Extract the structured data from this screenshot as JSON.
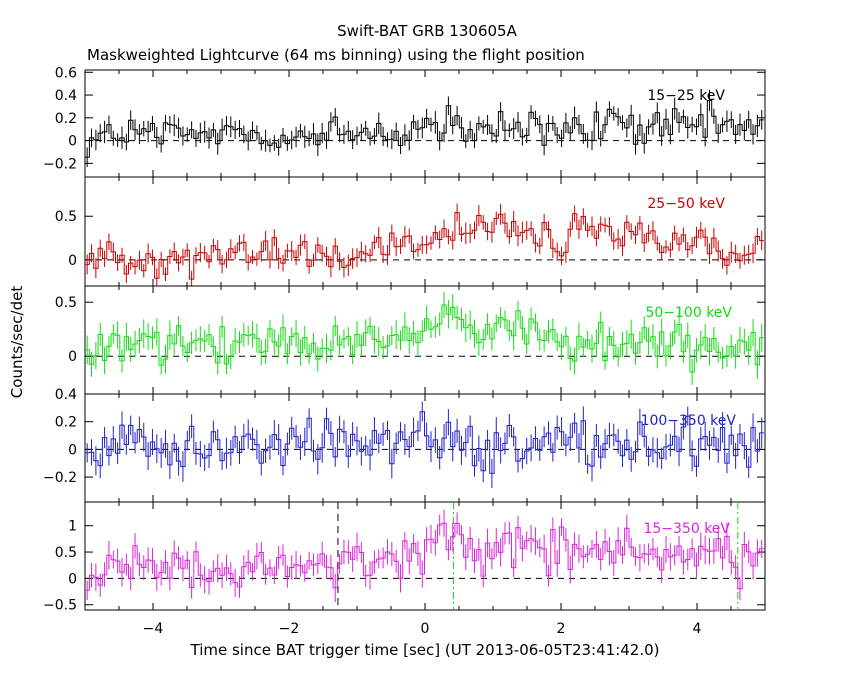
{
  "chart_data": {
    "type": "line",
    "title": "Swift-BAT GRB 130605A",
    "subtitle": "Maskweighted Lightcurve (64 ms binning) using the flight position",
    "xlabel": "Time since BAT trigger time [sec] (UT 2013-06-05T23:41:42.0)",
    "ylabel": "Counts/sec/det",
    "xlim": [
      -5,
      5
    ],
    "xticks": [
      -4,
      -2,
      0,
      2,
      4
    ],
    "xtick_labels": [
      "−4",
      "−2",
      "0",
      "2",
      "4"
    ],
    "bin_width": 0.064,
    "vlines_black": [
      -1.28
    ],
    "vlines_green": [
      0.42,
      4.6
    ],
    "panels": [
      {
        "name": "15−25 keV",
        "color": "#000000",
        "ylim": [
          -0.32,
          0.62
        ],
        "yticks": [
          -0.2,
          0,
          0.2,
          0.4,
          0.6
        ],
        "ytick_labels": [
          "−0.2",
          "0",
          "0.2",
          "0.4",
          "0.6"
        ],
        "points": [
          [
            -4.8,
            0.02
          ],
          [
            -4.4,
            0.06
          ],
          [
            -4.0,
            0.05
          ],
          [
            -3.6,
            0.03
          ],
          [
            -3.2,
            0.06
          ],
          [
            -2.8,
            0.08
          ],
          [
            -2.4,
            0.05
          ],
          [
            -2.0,
            0.04
          ],
          [
            -1.6,
            0.03
          ],
          [
            -1.2,
            0.05
          ],
          [
            -0.8,
            0.07
          ],
          [
            -0.4,
            0.06
          ],
          [
            0.0,
            0.14
          ],
          [
            0.4,
            0.08
          ],
          [
            0.8,
            0.06
          ],
          [
            1.2,
            0.12
          ],
          [
            1.6,
            0.1
          ],
          [
            2.0,
            0.06
          ],
          [
            2.4,
            0.08
          ],
          [
            2.8,
            0.16
          ],
          [
            3.2,
            0.12
          ],
          [
            3.6,
            0.1
          ],
          [
            4.0,
            0.12
          ],
          [
            4.4,
            0.14
          ],
          [
            4.8,
            0.1
          ]
        ],
        "noise": 0.09,
        "err": 0.08
      },
      {
        "name": "25−50 keV",
        "color": "#cc0000",
        "ylim": [
          -0.3,
          0.95
        ],
        "yticks": [
          0,
          0.5
        ],
        "ytick_labels": [
          "0",
          "0.5"
        ],
        "points": [
          [
            -4.8,
            0.02
          ],
          [
            -4.4,
            0.03
          ],
          [
            -4.0,
            0.03
          ],
          [
            -3.6,
            0.02
          ],
          [
            -3.2,
            0.03
          ],
          [
            -2.8,
            0.05
          ],
          [
            -2.4,
            0.07
          ],
          [
            -2.0,
            0.08
          ],
          [
            -1.6,
            0.06
          ],
          [
            -1.2,
            0.08
          ],
          [
            -0.8,
            0.13
          ],
          [
            -0.4,
            0.15
          ],
          [
            0.0,
            0.2
          ],
          [
            0.4,
            0.28
          ],
          [
            0.8,
            0.33
          ],
          [
            1.2,
            0.38
          ],
          [
            1.6,
            0.32
          ],
          [
            2.0,
            0.1
          ],
          [
            2.2,
            0.45
          ],
          [
            2.4,
            0.25
          ],
          [
            2.8,
            0.28
          ],
          [
            3.2,
            0.22
          ],
          [
            3.6,
            0.15
          ],
          [
            4.0,
            0.18
          ],
          [
            4.4,
            0.16
          ],
          [
            4.8,
            0.12
          ]
        ],
        "noise": 0.1,
        "err": 0.1
      },
      {
        "name": "50−100 keV",
        "color": "#11dd11",
        "ylim": [
          -0.35,
          0.65
        ],
        "yticks": [
          0,
          0.5
        ],
        "ytick_labels": [
          "0",
          "0.5"
        ],
        "points": [
          [
            -4.8,
            0.02
          ],
          [
            -4.4,
            0.08
          ],
          [
            -4.2,
            0.22
          ],
          [
            -4.0,
            0.08
          ],
          [
            -3.6,
            0.08
          ],
          [
            -3.2,
            0.06
          ],
          [
            -2.8,
            0.09
          ],
          [
            -2.4,
            0.1
          ],
          [
            -2.0,
            0.1
          ],
          [
            -1.6,
            0.08
          ],
          [
            -1.2,
            0.1
          ],
          [
            -0.8,
            0.18
          ],
          [
            -0.4,
            0.22
          ],
          [
            0.0,
            0.26
          ],
          [
            0.3,
            0.45
          ],
          [
            0.6,
            0.38
          ],
          [
            0.9,
            0.2
          ],
          [
            1.2,
            0.22
          ],
          [
            1.6,
            0.25
          ],
          [
            2.0,
            0.18
          ],
          [
            2.4,
            0.1
          ],
          [
            2.8,
            0.12
          ],
          [
            3.2,
            0.15
          ],
          [
            3.6,
            0.12
          ],
          [
            4.0,
            0.1
          ],
          [
            4.4,
            0.08
          ],
          [
            4.8,
            0.06
          ]
        ],
        "noise": 0.1,
        "err": 0.11
      },
      {
        "name": "100−350 keV",
        "color": "#2020cc",
        "ylim": [
          -0.38,
          0.4
        ],
        "yticks": [
          -0.2,
          0,
          0.2,
          0.4
        ],
        "ytick_labels": [
          "−0.2",
          "0",
          "0.2",
          "0.4"
        ],
        "points": [
          [
            -4.8,
            0.02
          ],
          [
            -4.4,
            0.05
          ],
          [
            -4.0,
            0.08
          ],
          [
            -3.6,
            0.04
          ],
          [
            -3.2,
            0.02
          ],
          [
            -2.8,
            0.03
          ],
          [
            -2.4,
            0.04
          ],
          [
            -2.0,
            0.02
          ],
          [
            -1.6,
            0.04
          ],
          [
            -1.2,
            0.05
          ],
          [
            -0.8,
            0.07
          ],
          [
            -0.4,
            0.08
          ],
          [
            0.0,
            0.12
          ],
          [
            0.4,
            0.1
          ],
          [
            0.8,
            0.06
          ],
          [
            1.2,
            0.05
          ],
          [
            1.6,
            0.04
          ],
          [
            2.0,
            0.05
          ],
          [
            2.4,
            0.06
          ],
          [
            2.8,
            0.08
          ],
          [
            3.2,
            0.05
          ],
          [
            3.6,
            0.04
          ],
          [
            4.0,
            0.03
          ],
          [
            4.4,
            0.02
          ],
          [
            4.8,
            0.01
          ]
        ],
        "noise": 0.09,
        "err": 0.09
      },
      {
        "name": "15−350 keV",
        "color": "#dd22dd",
        "ylim": [
          -0.6,
          1.45
        ],
        "yticks": [
          -0.5,
          0,
          0.5,
          1
        ],
        "ytick_labels": [
          "−0.5",
          "0",
          "0.5",
          "1"
        ],
        "points": [
          [
            -4.8,
            0.05
          ],
          [
            -4.4,
            0.12
          ],
          [
            -4.0,
            0.22
          ],
          [
            -3.6,
            0.15
          ],
          [
            -3.2,
            0.1
          ],
          [
            -2.8,
            0.15
          ],
          [
            -2.4,
            0.18
          ],
          [
            -2.0,
            0.2
          ],
          [
            -1.6,
            0.15
          ],
          [
            -1.2,
            0.28
          ],
          [
            -0.8,
            0.35
          ],
          [
            -0.4,
            0.45
          ],
          [
            0.0,
            0.55
          ],
          [
            0.3,
            0.85
          ],
          [
            0.6,
            0.7
          ],
          [
            0.9,
            0.4
          ],
          [
            1.2,
            0.75
          ],
          [
            1.6,
            0.68
          ],
          [
            2.0,
            0.45
          ],
          [
            2.4,
            0.5
          ],
          [
            2.8,
            0.55
          ],
          [
            3.2,
            0.5
          ],
          [
            3.6,
            0.4
          ],
          [
            4.0,
            0.42
          ],
          [
            4.4,
            0.38
          ],
          [
            4.8,
            0.3
          ]
        ],
        "noise": 0.2,
        "err": 0.22
      }
    ]
  }
}
